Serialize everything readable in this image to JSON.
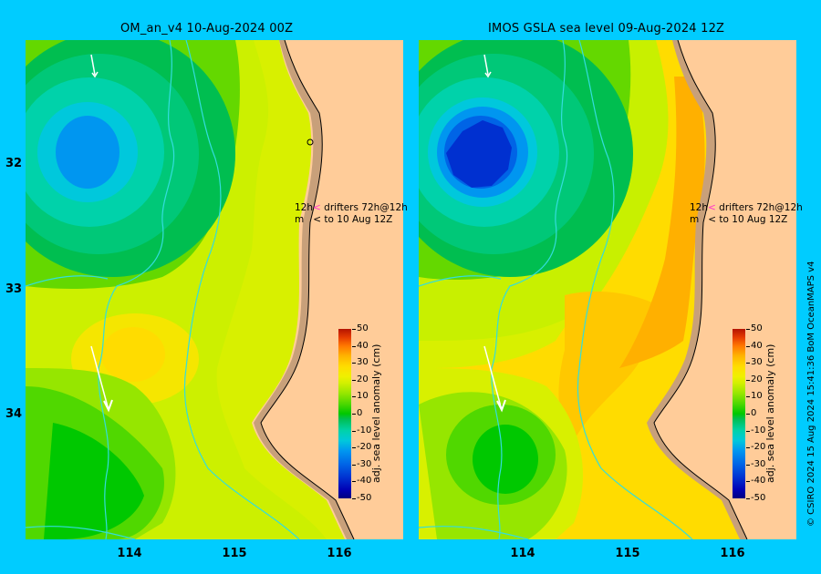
{
  "left_panel": {
    "title": "OM_an_v4  10-Aug-2024 00Z"
  },
  "right_panel": {
    "title": "IMOS GSLA sea level  09-Aug-2024 12Z"
  },
  "latitude_labels": [
    "32",
    "33",
    "34"
  ],
  "longitude_labels": [
    "114",
    "115",
    "116"
  ],
  "drifter_legend": {
    "line1_prefix": "12h",
    "line1_text": "drifters 72h@12h",
    "line2_prefix": "m",
    "line2_text": "to 10 Aug 12Z",
    "arrow_glyph": "<",
    "arrow_color_primary": "#ff33cc",
    "arrow_color_secondary": "#000000"
  },
  "colorbar": {
    "label": "adj. sea level anomaly (cm)",
    "ticks": [
      "50",
      "40",
      "30",
      "20",
      "10",
      "0",
      "-10",
      "-20",
      "-30",
      "-40",
      "-50"
    ],
    "min": -50,
    "max": 50
  },
  "credit": "© CSIRO 2024   15 Aug 2024 15:41:36 BoM OceanMAPS v4",
  "colors": {
    "background": "#00ccff",
    "land": "#ffcc99",
    "coast_shelf": "#c8a07a",
    "isobath": "#33dddd"
  }
}
